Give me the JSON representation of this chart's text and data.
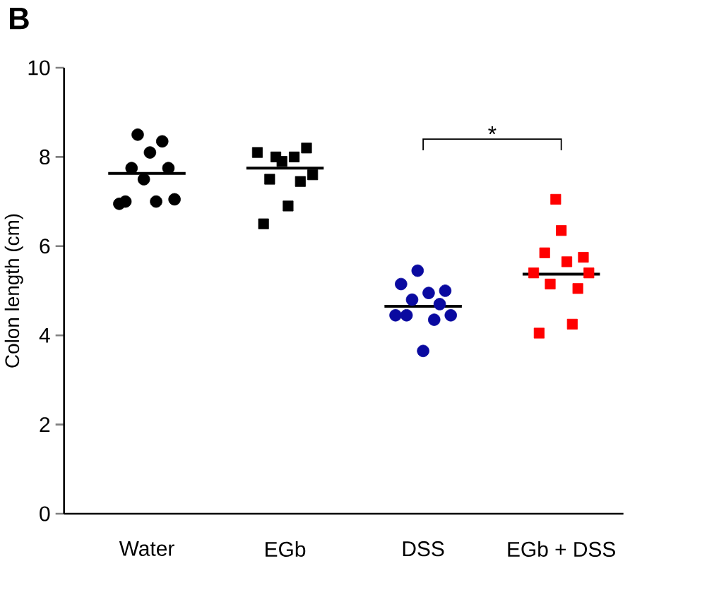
{
  "chart_data": {
    "type": "scatter",
    "ylabel": "Colon length (cm)",
    "categories": [
      "Water",
      "EGb",
      "DSS",
      "EGb + DSS"
    ],
    "ylim": [
      0,
      10
    ],
    "yticks": [
      0,
      2,
      4,
      6,
      8,
      10
    ],
    "grid": false,
    "annotations": [
      "B",
      "*"
    ],
    "series": [
      {
        "type": "scatter",
        "marker": "circle",
        "color": "#000000",
        "x": [
          "Water",
          "Water",
          "Water",
          "Water",
          "Water",
          "Water",
          "Water",
          "Water",
          "Water",
          "Water"
        ],
        "values": [
          6.95,
          7.0,
          7.75,
          8.5,
          7.5,
          8.1,
          7.0,
          8.35,
          7.75,
          7.05
        ]
      },
      {
        "type": "scatter",
        "marker": "square",
        "color": "#000000",
        "x": [
          "EGb",
          "EGb",
          "EGb",
          "EGb",
          "EGb",
          "EGb",
          "EGb",
          "EGb",
          "EGb",
          "EGb"
        ],
        "values": [
          8.1,
          6.5,
          7.5,
          8.0,
          7.9,
          6.9,
          8.0,
          7.45,
          8.2,
          7.6
        ]
      },
      {
        "type": "scatter",
        "marker": "circle",
        "color": "#0a0aa0",
        "x": [
          "DSS",
          "DSS",
          "DSS",
          "DSS",
          "DSS",
          "DSS",
          "DSS",
          "DSS",
          "DSS",
          "DSS",
          "DSS"
        ],
        "values": [
          4.45,
          5.15,
          4.45,
          4.8,
          5.45,
          3.65,
          4.95,
          4.35,
          4.7,
          5.0,
          4.45
        ]
      },
      {
        "type": "scatter",
        "marker": "square",
        "color": "#ff0000",
        "x": [
          "EGb + DSS",
          "EGb + DSS",
          "EGb + DSS",
          "EGb + DSS",
          "EGb + DSS",
          "EGb + DSS",
          "EGb + DSS",
          "EGb + DSS",
          "EGb + DSS",
          "EGb + DSS",
          "EGb + DSS"
        ],
        "values": [
          5.4,
          4.05,
          5.85,
          5.15,
          7.05,
          6.35,
          5.65,
          4.25,
          5.05,
          5.75,
          5.4
        ]
      },
      {
        "type": "box",
        "color": "#000000",
        "boxes": [
          {
            "low": 7.63,
            "q1": 7.63,
            "median": 7.63,
            "q3": 7.63,
            "high": 7.63
          },
          {
            "low": 7.75,
            "q1": 7.75,
            "median": 7.75,
            "q3": 7.75,
            "high": 7.75
          },
          {
            "low": 4.65,
            "q1": 4.65,
            "median": 4.65,
            "q3": 4.65,
            "high": 4.65
          },
          {
            "low": 5.37,
            "q1": 5.37,
            "median": 5.37,
            "q3": 5.37,
            "high": 5.37
          }
        ]
      }
    ]
  }
}
